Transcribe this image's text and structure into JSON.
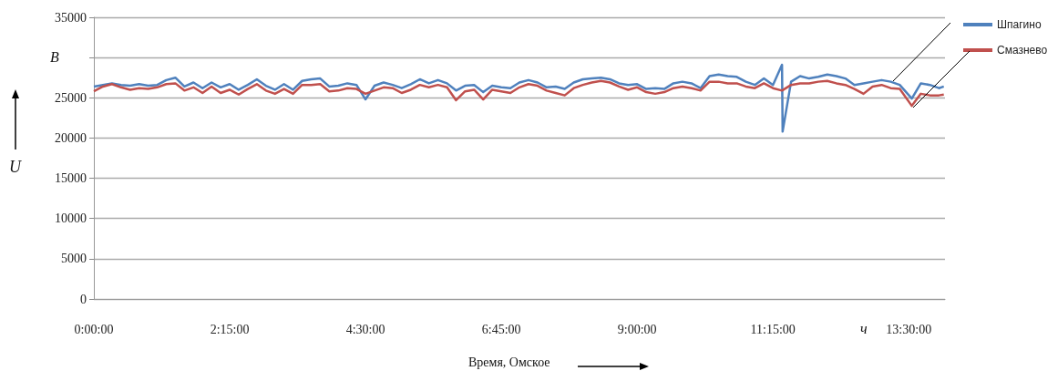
{
  "chart_data": {
    "type": "line",
    "xlabel": "Время, Омское",
    "ylabel": "U",
    "annotations": [
      "В",
      "ч"
    ],
    "xlim": [
      0,
      14.1
    ],
    "xticks": [
      {
        "value": 0,
        "label": "0:00:00"
      },
      {
        "value": 2.25,
        "label": "2:15:00"
      },
      {
        "value": 4.5,
        "label": "4:30:00"
      },
      {
        "value": 6.75,
        "label": "6:45:00"
      },
      {
        "value": 9,
        "label": "9:00:00"
      },
      {
        "value": 11.25,
        "label": "11:15:00"
      },
      {
        "value": 13.5,
        "label": "13:30:00"
      }
    ],
    "ylim": [
      0,
      35000
    ],
    "yticks": [
      0,
      5000,
      10000,
      15000,
      20000,
      25000,
      {
        "value": 30000,
        "label": null
      },
      35000
    ],
    "grid": "y",
    "legend": "top right",
    "series": [
      {
        "name": "Шпагино",
        "color": "#4f81bd",
        "x": [
          0,
          0.15,
          0.3,
          0.45,
          0.6,
          0.75,
          0.9,
          1.05,
          1.2,
          1.35,
          1.5,
          1.65,
          1.8,
          1.95,
          2.1,
          2.25,
          2.4,
          2.55,
          2.7,
          2.85,
          3,
          3.15,
          3.3,
          3.45,
          3.6,
          3.75,
          3.9,
          4.05,
          4.2,
          4.35,
          4.5,
          4.65,
          4.8,
          4.95,
          5.1,
          5.25,
          5.4,
          5.55,
          5.7,
          5.85,
          6,
          6.15,
          6.3,
          6.45,
          6.6,
          6.75,
          6.9,
          7.05,
          7.2,
          7.35,
          7.5,
          7.65,
          7.8,
          7.95,
          8.1,
          8.25,
          8.4,
          8.55,
          8.7,
          8.85,
          9,
          9.15,
          9.3,
          9.45,
          9.6,
          9.75,
          9.9,
          10.05,
          10.2,
          10.35,
          10.5,
          10.65,
          10.8,
          10.95,
          11.1,
          11.25,
          11.4,
          11.41,
          11.55,
          11.7,
          11.85,
          12,
          12.15,
          12.3,
          12.45,
          12.6,
          12.75,
          12.9,
          13.05,
          13.2,
          13.35,
          13.55,
          13.7,
          13.85,
          14,
          14.08
        ],
        "values": [
          26400,
          26600,
          26800,
          26600,
          26500,
          26700,
          26500,
          26600,
          27200,
          27500,
          26400,
          26900,
          26200,
          26900,
          26300,
          26700,
          26000,
          26600,
          27300,
          26500,
          26000,
          26700,
          26000,
          27100,
          27300,
          27400,
          26400,
          26500,
          26800,
          26600,
          24800,
          26500,
          26900,
          26600,
          26200,
          26700,
          27300,
          26800,
          27200,
          26800,
          25900,
          26500,
          26600,
          25700,
          26500,
          26300,
          26200,
          26900,
          27200,
          26900,
          26300,
          26400,
          26100,
          26900,
          27300,
          27400,
          27500,
          27300,
          26800,
          26600,
          26700,
          26100,
          26200,
          26100,
          26800,
          27000,
          26800,
          26200,
          27700,
          27900,
          27700,
          27600,
          27000,
          26600,
          27400,
          26600,
          29100,
          20800,
          27000,
          27700,
          27400,
          27600,
          27900,
          27700,
          27400,
          26600,
          26800,
          27000,
          27200,
          27000,
          26600,
          24900,
          26800,
          26600,
          26200,
          26400
        ]
      },
      {
        "name": "Смазнево",
        "color": "#c0504d",
        "x": [
          0,
          0.15,
          0.3,
          0.45,
          0.6,
          0.75,
          0.9,
          1.05,
          1.2,
          1.35,
          1.5,
          1.65,
          1.8,
          1.95,
          2.1,
          2.25,
          2.4,
          2.55,
          2.7,
          2.85,
          3,
          3.15,
          3.3,
          3.45,
          3.6,
          3.75,
          3.9,
          4.05,
          4.2,
          4.35,
          4.5,
          4.65,
          4.8,
          4.95,
          5.1,
          5.25,
          5.4,
          5.55,
          5.7,
          5.85,
          6,
          6.15,
          6.3,
          6.45,
          6.6,
          6.75,
          6.9,
          7.05,
          7.2,
          7.35,
          7.5,
          7.65,
          7.8,
          7.95,
          8.1,
          8.25,
          8.4,
          8.55,
          8.7,
          8.85,
          9,
          9.15,
          9.3,
          9.45,
          9.6,
          9.75,
          9.9,
          10.05,
          10.2,
          10.35,
          10.5,
          10.65,
          10.8,
          10.95,
          11.1,
          11.25,
          11.4,
          11.55,
          11.7,
          11.85,
          12,
          12.15,
          12.3,
          12.45,
          12.6,
          12.75,
          12.9,
          13.05,
          13.2,
          13.35,
          13.55,
          13.7,
          13.85,
          14,
          14.08
        ],
        "values": [
          25800,
          26400,
          26700,
          26300,
          26000,
          26200,
          26100,
          26300,
          26700,
          26800,
          25900,
          26300,
          25600,
          26400,
          25600,
          26000,
          25400,
          26100,
          26700,
          25900,
          25500,
          26100,
          25500,
          26600,
          26600,
          26700,
          25800,
          25900,
          26200,
          26100,
          25500,
          25900,
          26300,
          26200,
          25600,
          26000,
          26600,
          26300,
          26600,
          26300,
          24700,
          25800,
          26000,
          24800,
          26000,
          25800,
          25600,
          26300,
          26700,
          26500,
          25900,
          25600,
          25300,
          26200,
          26600,
          26900,
          27100,
          26900,
          26400,
          26000,
          26300,
          25700,
          25500,
          25700,
          26200,
          26400,
          26200,
          25900,
          27000,
          27000,
          26800,
          26800,
          26400,
          26200,
          26800,
          26200,
          25900,
          26600,
          26800,
          26800,
          27000,
          27100,
          26800,
          26600,
          26100,
          25500,
          26400,
          26600,
          26200,
          26100,
          24000,
          25500,
          25300,
          25300,
          25400
        ]
      }
    ]
  }
}
